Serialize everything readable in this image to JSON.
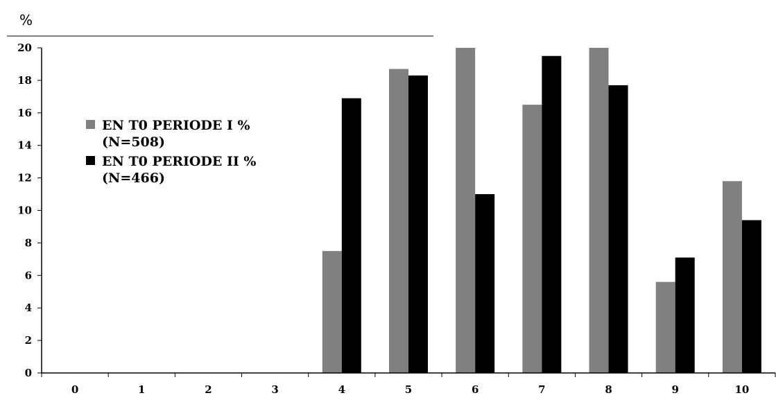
{
  "chart_data": {
    "type": "bar",
    "ylabel": "%",
    "xlabel": "",
    "categories": [
      "0",
      "1",
      "2",
      "3",
      "4",
      "5",
      "6",
      "7",
      "8",
      "9",
      "10"
    ],
    "ylim": [
      0,
      20
    ],
    "yticks": [
      0,
      2,
      4,
      6,
      8,
      10,
      12,
      14,
      16,
      18,
      20
    ],
    "series": [
      {
        "name": "EN T0 PERIODE I %",
        "name_line2": "(N=508)",
        "color": "#808080",
        "values": [
          0,
          0,
          0,
          0,
          7.5,
          18.7,
          20.0,
          16.5,
          20.0,
          5.6,
          11.8
        ]
      },
      {
        "name": "EN T0 PERIODE II %",
        "name_line2": "(N=466)",
        "color": "#000000",
        "values": [
          0,
          0,
          0,
          0,
          16.9,
          18.3,
          11.0,
          19.5,
          17.7,
          7.1,
          9.4
        ]
      }
    ],
    "legend_position": "upper-left",
    "grid": false
  }
}
